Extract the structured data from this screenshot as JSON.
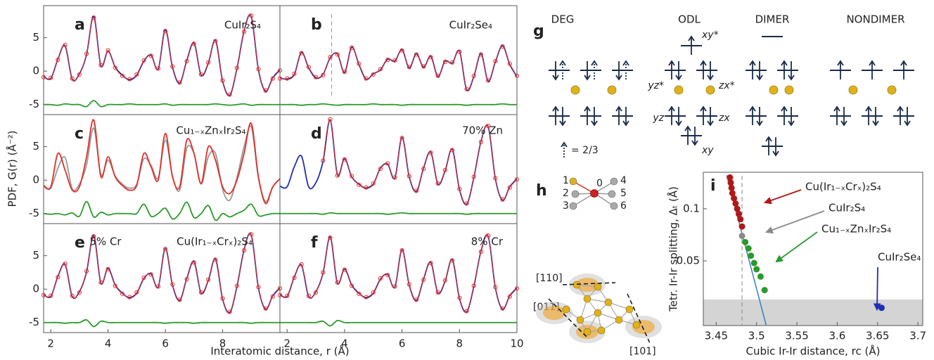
{
  "chart_data": [
    {
      "type": "line",
      "label": "a",
      "annotations": [
        "CuIr₂S₄"
      ],
      "x": [
        1.75,
        2,
        2.25,
        2.5,
        2.75,
        3,
        3.25,
        3.5,
        3.75,
        4,
        4.25,
        4.5,
        4.75,
        5,
        5.25,
        5.5,
        5.75,
        6,
        6.25,
        6.5,
        6.75,
        7,
        7.25,
        7.5,
        7.75,
        8,
        8.25,
        8.5,
        8.75,
        9,
        9.25,
        9.5,
        9.75,
        10
      ],
      "xlim": [
        1.75,
        10
      ],
      "ylim": [
        -6.5,
        9.8
      ],
      "yticks": [
        -5,
        0,
        5
      ],
      "series": [
        {
          "color": "#1f2fb0",
          "values": [
            -0.8,
            -1.1,
            1.8,
            3.8,
            -1.2,
            -0.4,
            2.5,
            8.2,
            0.8,
            3.0,
            0.6,
            -0.6,
            -1.3,
            -0.6,
            1.5,
            2.4,
            0.3,
            6.2,
            0.6,
            -1.8,
            1.6,
            4.2,
            -0.6,
            1.2,
            4.6,
            -1.5,
            -3.6,
            0.4,
            6.0,
            8.2,
            0.2,
            -3.0,
            -1.0,
            0.2
          ]
        },
        {
          "color": "#e0302a",
          "marker": "circle",
          "values": [
            -0.9,
            -1.0,
            1.7,
            3.9,
            -1.1,
            -0.5,
            2.6,
            8.0,
            0.9,
            3.1,
            0.5,
            -0.7,
            -1.2,
            -0.5,
            1.6,
            2.3,
            0.4,
            6.0,
            0.7,
            -1.7,
            1.5,
            4.1,
            -0.5,
            1.3,
            4.5,
            -1.4,
            -3.5,
            0.5,
            5.9,
            8.3,
            0.3,
            -2.9,
            -1.1,
            0.1
          ]
        },
        {
          "color": "#2a9a2a",
          "values": [
            -5,
            -5,
            -5.1,
            -4.9,
            -5,
            -5,
            -5.3,
            -4.4,
            -5.3,
            -5,
            -5,
            -5,
            -4.9,
            -5,
            -5,
            -5,
            -5,
            -4.9,
            -5.1,
            -5,
            -5,
            -5,
            -5,
            -5,
            -4.9,
            -5,
            -5.1,
            -5,
            -4.9,
            -5.1,
            -5,
            -5,
            -5,
            -5
          ]
        }
      ]
    },
    {
      "type": "line",
      "label": "b",
      "annotations": [
        "CuIr₂Se₄"
      ],
      "reference_x": 3.55,
      "x": [
        1.75,
        2,
        2.25,
        2.5,
        2.75,
        3,
        3.25,
        3.5,
        3.75,
        4,
        4.25,
        4.5,
        4.75,
        5,
        5.25,
        5.5,
        5.75,
        6,
        6.25,
        6.5,
        6.75,
        7,
        7.25,
        7.5,
        7.75,
        8,
        8.25,
        8.5,
        8.75,
        9,
        9.25,
        9.5,
        9.75,
        10
      ],
      "xlim": [
        1.75,
        10
      ],
      "ylim": [
        -6.5,
        9.8
      ],
      "series": [
        {
          "color": "#1f2fb0",
          "values": [
            -1.0,
            -1.2,
            -0.5,
            2.8,
            0.5,
            -1.0,
            -0.5,
            2.0,
            2.6,
            -0.2,
            3.6,
            1.0,
            -1.2,
            -0.4,
            0.2,
            1.8,
            1.5,
            3.2,
            0.5,
            2.6,
            0.6,
            2.2,
            -0.8,
            1.5,
            1.2,
            3.0,
            -2.8,
            -0.8,
            2.6,
            -1.5,
            1.4,
            3.8,
            1.0,
            -0.8
          ]
        },
        {
          "color": "#e0302a",
          "marker": "circle",
          "values": [
            -1.1,
            -1.1,
            -0.4,
            2.7,
            0.6,
            -0.9,
            -0.6,
            2.1,
            2.5,
            -0.1,
            3.5,
            1.1,
            -1.1,
            -0.5,
            0.3,
            1.7,
            1.6,
            3.1,
            0.6,
            2.5,
            0.7,
            2.1,
            -0.7,
            1.4,
            1.3,
            2.9,
            -2.7,
            -0.7,
            2.5,
            -1.4,
            1.5,
            3.7,
            1.1,
            -0.7
          ]
        },
        {
          "color": "#2a9a2a",
          "values": [
            -5,
            -5,
            -5,
            -5.1,
            -5,
            -5,
            -4.9,
            -5,
            -5.1,
            -5,
            -5,
            -5,
            -5,
            -4.9,
            -5,
            -5,
            -5,
            -5.1,
            -5,
            -5,
            -5,
            -5,
            -5,
            -5,
            -5,
            -5,
            -5.1,
            -5,
            -5,
            -5,
            -5,
            -4.9,
            -5,
            -5
          ]
        }
      ]
    },
    {
      "type": "line",
      "label": "c",
      "annotations": [
        "Cu₁₋ₓZnₓIr₂S₄"
      ],
      "ylabel": "PDF, G(r) (Å⁻²)",
      "x": [
        1.75,
        2,
        2.25,
        2.5,
        2.75,
        3,
        3.25,
        3.5,
        3.75,
        4,
        4.25,
        4.5,
        4.75,
        5,
        5.25,
        5.5,
        5.75,
        6,
        6.25,
        6.5,
        6.75,
        7,
        7.25,
        7.5,
        7.75,
        8,
        8.25,
        8.5,
        8.75,
        9,
        9.25,
        9.5,
        9.75,
        10
      ],
      "xlim": [
        1.75,
        10
      ],
      "ylim": [
        -6.5,
        9.8
      ],
      "yticks": [
        -5,
        0,
        5
      ],
      "series": [
        {
          "color": "#999999",
          "values": [
            -1.0,
            -1.2,
            1.8,
            3.4,
            -1.3,
            -0.6,
            2.3,
            7.8,
            0.8,
            3.0,
            0.6,
            -0.6,
            -1.2,
            -0.6,
            3.2,
            2.2,
            0.3,
            6.0,
            0.6,
            -1.5,
            4.8,
            4.0,
            -0.6,
            3.5,
            4.0,
            -1.4,
            -3.0,
            0.4,
            5.0,
            8.0,
            0.3,
            -3.2,
            -1.0,
            0.2
          ]
        },
        {
          "color": "#e0302a",
          "values": [
            -0.8,
            -1.0,
            4.0,
            1.5,
            -1.5,
            -1.0,
            3.5,
            9.0,
            0.5,
            3.5,
            0.5,
            -0.8,
            -1.5,
            -0.8,
            4.0,
            2.0,
            0.0,
            7.0,
            0.5,
            -1.0,
            6.0,
            4.0,
            -0.5,
            5.0,
            3.0,
            -1.0,
            -2.0,
            0.0,
            4.0,
            8.5,
            0.5,
            -3.5,
            -1.0,
            0.2
          ]
        },
        {
          "color": "#2a9a2a",
          "values": [
            -5,
            -5.1,
            -5,
            -5.2,
            -4.9,
            -5.4,
            -3.2,
            -5.5,
            -4.8,
            -5.2,
            -5,
            -5,
            -5,
            -5,
            -3.6,
            -5.4,
            -5,
            -4.2,
            -5.8,
            -5,
            -3.3,
            -5.6,
            -5,
            -3.8,
            -6,
            -5,
            -5.5,
            -5,
            -4.5,
            -3.6,
            -5.3,
            -5.2,
            -5,
            -5
          ]
        }
      ]
    },
    {
      "type": "line",
      "label": "d",
      "annotations": [
        "70% Zn"
      ],
      "x": [
        1.75,
        2,
        2.25,
        2.5,
        2.75,
        3,
        3.25,
        3.5,
        3.75,
        4,
        4.25,
        4.5,
        4.75,
        5,
        5.25,
        5.5,
        5.75,
        6,
        6.25,
        6.5,
        6.75,
        7,
        7.25,
        7.5,
        7.75,
        8,
        8.25,
        8.5,
        8.75,
        9,
        9.25,
        9.5,
        9.75,
        10
      ],
      "xlim": [
        1.75,
        10
      ],
      "ylim": [
        -6.5,
        9.8
      ],
      "series": [
        {
          "color": "#1f2fb0",
          "values": [
            -0.9,
            -1.0,
            2.0,
            3.6,
            -1.0,
            -0.4,
            2.8,
            9.0,
            0.8,
            3.2,
            0.5,
            -0.6,
            -1.2,
            -0.6,
            1.8,
            2.4,
            0.3,
            6.4,
            0.5,
            -1.7,
            1.8,
            4.2,
            -0.6,
            1.4,
            4.6,
            -1.4,
            -3.6,
            0.4,
            5.8,
            8.0,
            0.2,
            -3.0,
            -1.0,
            0.2
          ]
        },
        {
          "color": "#e0302a",
          "marker": "circle",
          "values": [
            null,
            null,
            null,
            null,
            null,
            null,
            2.9,
            9.1,
            0.7,
            3.1,
            0.6,
            -0.7,
            -1.1,
            -0.5,
            1.7,
            2.5,
            0.4,
            6.3,
            0.6,
            -1.6,
            1.7,
            4.1,
            -0.5,
            1.5,
            4.5,
            -1.3,
            -3.5,
            0.5,
            5.7,
            8.1,
            0.3,
            -2.9,
            -1.1,
            0.1
          ]
        },
        {
          "color": "#2a9a2a",
          "values": [
            -5,
            -5,
            -5,
            -5,
            -5,
            -5,
            -5.1,
            -4.9,
            -5,
            -5,
            -5,
            -5,
            -5,
            -5,
            -5,
            -5.1,
            -5,
            -4.9,
            -5,
            -5,
            -5,
            -5,
            -5,
            -5,
            -5,
            -5,
            -5.1,
            -5,
            -5,
            -5,
            -5,
            -5,
            -5,
            -5
          ]
        }
      ]
    },
    {
      "type": "line",
      "label": "e",
      "annotations": [
        "5% Cr",
        "Cu(Ir₁₋ₓCrₓ)₂S₄"
      ],
      "xlabel": "Interatomic distance, r (Å)",
      "x": [
        1.75,
        2,
        2.25,
        2.5,
        2.75,
        3,
        3.25,
        3.5,
        3.75,
        4,
        4.25,
        4.5,
        4.75,
        5,
        5.25,
        5.5,
        5.75,
        6,
        6.25,
        6.5,
        6.75,
        7,
        7.25,
        7.5,
        7.75,
        8,
        8.25,
        8.5,
        8.75,
        9,
        9.25,
        9.5,
        9.75,
        10
      ],
      "xlim": [
        1.75,
        10
      ],
      "ylim": [
        -6.5,
        9.8
      ],
      "xticks": [
        2,
        4,
        6,
        8
      ],
      "yticks": [
        -5,
        0,
        5
      ],
      "series": [
        {
          "color": "#1f2fb0",
          "values": [
            -0.8,
            -1.1,
            1.9,
            3.7,
            -1.1,
            -0.4,
            2.6,
            8.0,
            0.9,
            3.1,
            0.6,
            -0.6,
            -1.3,
            -0.6,
            1.6,
            2.3,
            0.3,
            6.1,
            0.6,
            -1.7,
            1.6,
            4.1,
            -0.6,
            1.3,
            4.5,
            -1.5,
            -3.5,
            0.4,
            5.9,
            8.1,
            0.2,
            -3.0,
            -1.0,
            0.2
          ]
        },
        {
          "color": "#e0302a",
          "marker": "circle",
          "values": [
            -0.9,
            -1.0,
            1.8,
            3.8,
            -1.0,
            -0.5,
            2.7,
            7.9,
            1.0,
            3.0,
            0.5,
            -0.7,
            -1.2,
            -0.5,
            1.7,
            2.2,
            0.4,
            6.0,
            0.7,
            -1.6,
            1.5,
            4.0,
            -0.5,
            1.4,
            4.4,
            -1.4,
            -3.4,
            0.5,
            5.8,
            8.2,
            0.3,
            -2.9,
            -1.1,
            0.1
          ]
        },
        {
          "color": "#2a9a2a",
          "values": [
            -5,
            -5,
            -5,
            -5.1,
            -5,
            -5,
            -4.6,
            -5.6,
            -4.8,
            -5,
            -5,
            -5,
            -5,
            -5,
            -5,
            -5,
            -5,
            -5.1,
            -5,
            -5,
            -5,
            -5.1,
            -5,
            -5,
            -5,
            -5,
            -5,
            -5,
            -5,
            -5.1,
            -5,
            -5,
            -5,
            -5
          ]
        }
      ]
    },
    {
      "type": "line",
      "label": "f",
      "annotations": [
        "8% Cr"
      ],
      "x": [
        1.75,
        2,
        2.25,
        2.5,
        2.75,
        3,
        3.25,
        3.5,
        3.75,
        4,
        4.25,
        4.5,
        4.75,
        5,
        5.25,
        5.5,
        5.75,
        6,
        6.25,
        6.5,
        6.75,
        7,
        7.25,
        7.5,
        7.75,
        8,
        8.25,
        8.5,
        8.75,
        9,
        9.25,
        9.5,
        9.75,
        10
      ],
      "xlim": [
        1.75,
        10
      ],
      "ylim": [
        -6.5,
        9.8
      ],
      "xticks": [
        2,
        4,
        6,
        8,
        10
      ],
      "series": [
        {
          "color": "#1f2fb0",
          "values": [
            -0.8,
            -1.1,
            1.8,
            3.6,
            -1.1,
            -0.4,
            2.4,
            7.8,
            0.9,
            3.0,
            0.6,
            -0.6,
            -1.3,
            -0.6,
            1.5,
            2.2,
            0.3,
            5.9,
            0.6,
            -1.7,
            1.5,
            4.0,
            -0.6,
            1.2,
            4.4,
            -1.4,
            -3.4,
            0.4,
            5.7,
            7.9,
            0.2,
            -3.0,
            -1.0,
            0.2
          ]
        },
        {
          "color": "#e0302a",
          "marker": "circle",
          "values": [
            -0.9,
            -1.0,
            1.7,
            3.7,
            -1.0,
            -0.5,
            2.5,
            7.7,
            1.0,
            2.9,
            0.5,
            -0.7,
            -1.2,
            -0.5,
            1.6,
            2.1,
            0.4,
            5.8,
            0.7,
            -1.6,
            1.4,
            3.9,
            -0.5,
            1.3,
            4.3,
            -1.3,
            -3.3,
            0.5,
            5.6,
            8.0,
            0.3,
            -2.9,
            -1.1,
            0.1
          ]
        },
        {
          "color": "#2a9a2a",
          "values": [
            -5,
            -5,
            -5,
            -5,
            -5,
            -5,
            -4.8,
            -5.5,
            -4.7,
            -5,
            -5,
            -5,
            -5,
            -5,
            -5,
            -5,
            -5,
            -5,
            -5,
            -5,
            -5,
            -5,
            -5,
            -5,
            -5,
            -5,
            -5,
            -5,
            -5,
            -5,
            -5,
            -5,
            -5,
            -5
          ]
        }
      ]
    },
    {
      "type": "scatter",
      "label": "i",
      "xlabel": "Cubic Ir-Ir distance, rc (Å)",
      "ylabel": "Tetr. Ir-Ir splitting, Δₜ (Å)",
      "xlim": [
        3.434,
        3.706
      ],
      "ylim": [
        -0.012,
        0.135
      ],
      "xticks": [
        3.45,
        3.5,
        3.55,
        3.6,
        3.65,
        3.7
      ],
      "yticks": [
        0.05,
        0.1
      ],
      "shaded_band": [
        -0.012,
        0.013
      ],
      "reference_x": 3.482,
      "fit_line": {
        "x": [
          3.463,
          3.512
        ],
        "y": [
          0.132,
          -0.012
        ]
      },
      "series": [
        {
          "name": "Cu(Ir₁₋ₓCrₓ)₂S₄",
          "color": "#b01818",
          "x": [
            3.467,
            3.468,
            3.469,
            3.47,
            3.472,
            3.474,
            3.476,
            3.478,
            3.48,
            3.482
          ],
          "values": [
            0.13,
            0.125,
            0.12,
            0.115,
            0.11,
            0.105,
            0.1,
            0.095,
            0.09,
            0.083
          ]
        },
        {
          "name": "CuIr₂S₄",
          "color": "#8a8a8a",
          "x": [
            3.482
          ],
          "values": [
            0.074
          ]
        },
        {
          "name": "Cu₁₋ₓZnₓIr₂S₄",
          "color": "#2a9a2a",
          "x": [
            3.486,
            3.49,
            3.493,
            3.497,
            3.5,
            3.505,
            3.51
          ],
          "values": [
            0.068,
            0.062,
            0.055,
            0.048,
            0.042,
            0.035,
            0.022
          ]
        },
        {
          "name": "CuIr₂Se₄",
          "color": "#1f2fb0",
          "x": [
            3.655
          ],
          "values": [
            0.005
          ]
        }
      ]
    }
  ],
  "diagram": {
    "panel_g": {
      "label": "g",
      "columns": [
        "DEG",
        "ODL",
        "DIMER",
        "NONDIMER"
      ],
      "orbitals": [
        "xy*",
        "yz*",
        "zx*",
        "yz",
        "zx",
        "xy"
      ],
      "legend": "= 2/3"
    },
    "panel_h": {
      "label": "h",
      "atoms": [
        "1",
        "2",
        "3",
        "0",
        "4",
        "5",
        "6"
      ],
      "directions": [
        "[110]",
        "[011]",
        "[101]"
      ]
    }
  }
}
